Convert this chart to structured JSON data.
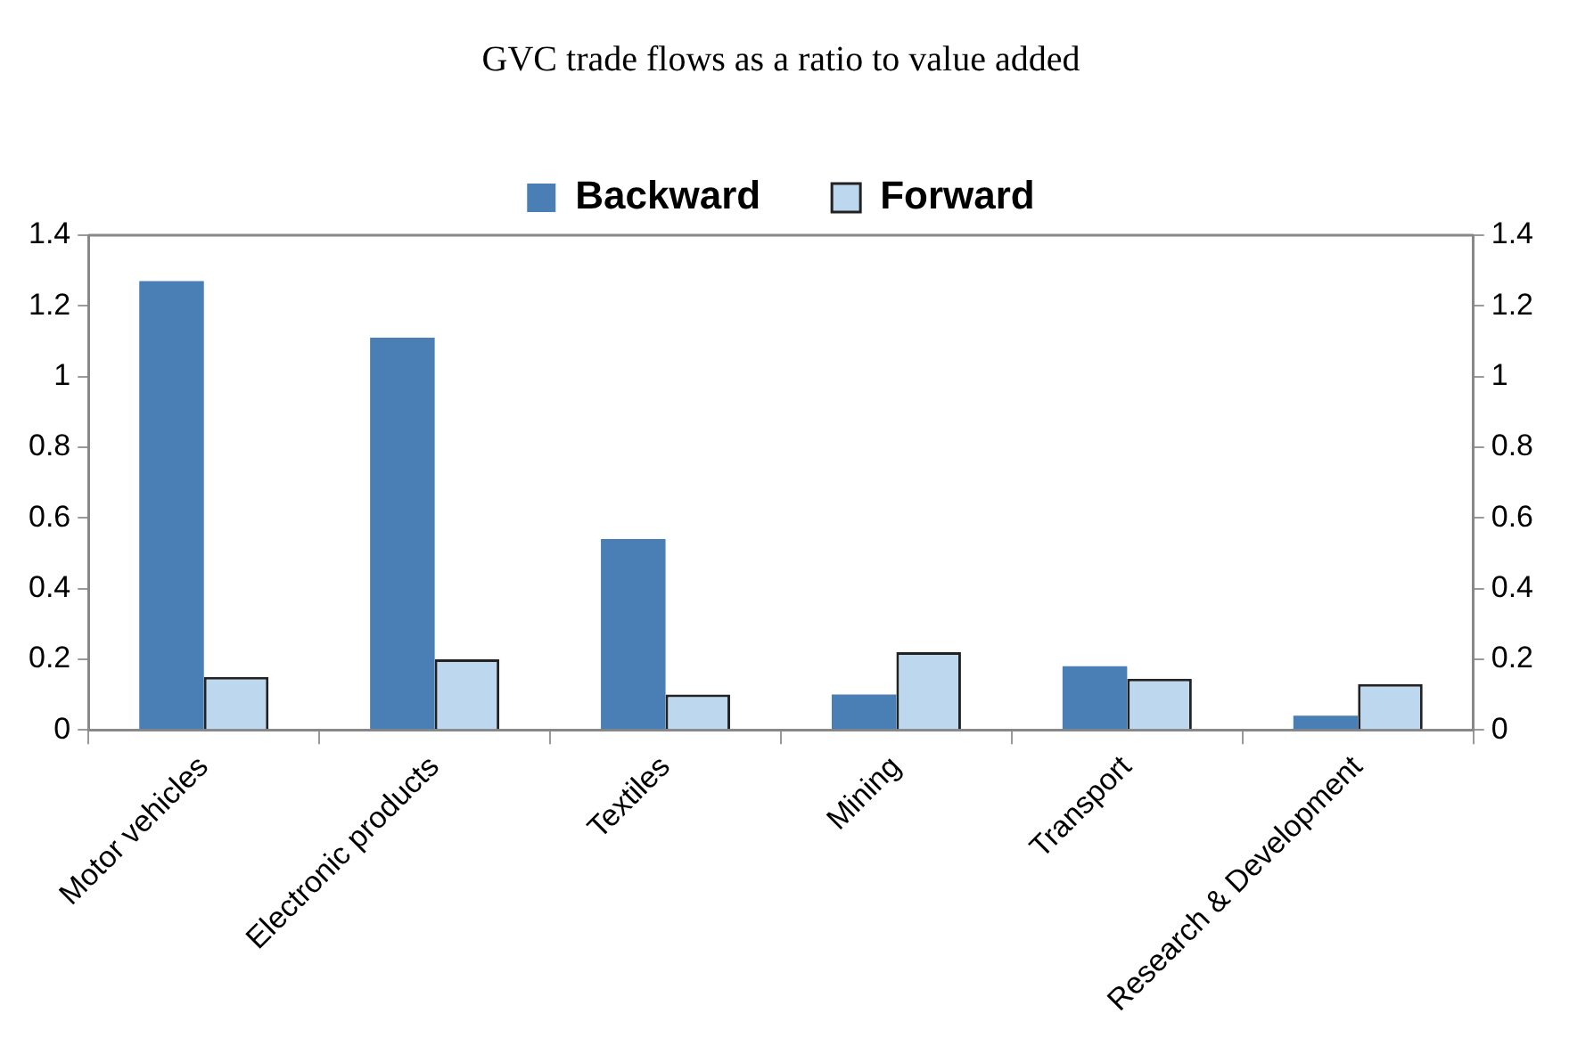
{
  "chart_data": {
    "type": "bar",
    "title": "GVC trade flows as a ratio to value added",
    "categories": [
      "Motor vehicles",
      "Electronic products",
      "Textiles",
      "Mining",
      "Transport",
      "Research & Development"
    ],
    "series": [
      {
        "name": "Backward",
        "color": "#4a7fb5",
        "values": [
          1.27,
          1.11,
          0.54,
          0.1,
          0.18,
          0.04
        ]
      },
      {
        "name": "Forward",
        "color": "#bdd7ee",
        "values": [
          0.15,
          0.2,
          0.1,
          0.22,
          0.145,
          0.13
        ]
      }
    ],
    "ylim": [
      0,
      1.4
    ],
    "yticks": [
      0,
      0.2,
      0.4,
      0.6,
      0.8,
      1,
      1.2,
      1.4
    ],
    "y2lim": [
      0,
      1.4
    ],
    "y2ticks": [
      0,
      0.2,
      0.4,
      0.6,
      0.8,
      1,
      1.2,
      1.4
    ],
    "grid": false,
    "legend": "top"
  }
}
